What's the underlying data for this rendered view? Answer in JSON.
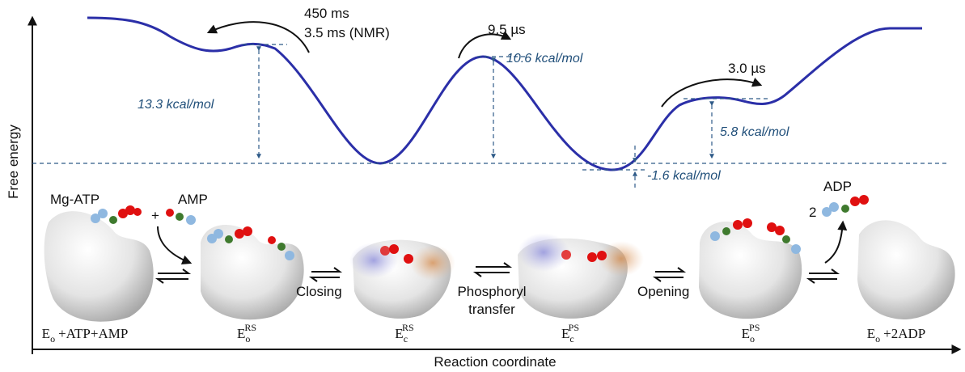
{
  "axes": {
    "y_label": "Free energy",
    "x_label": "Reaction coordinate"
  },
  "kinetics": {
    "t1": "450 ms",
    "t1_nmr": "3.5 ms (NMR)",
    "t2": "9.5 µs",
    "t3": "3.0 µs"
  },
  "energies": {
    "e1": "13.3 kcal/mol",
    "e2": "10.6 kcal/mol",
    "e3": "-1.6 kcal/mol",
    "e4": "5.8 kcal/mol"
  },
  "ligands": {
    "mg_atp": "Mg-ATP",
    "plus": "+",
    "amp": "AMP",
    "adp": "ADP",
    "adp_count": "2"
  },
  "steps": {
    "closing": "Closing",
    "phosphoryl": [
      "Phosphoryl",
      "transfer"
    ],
    "opening": "Opening"
  },
  "states": [
    {
      "base": "E",
      "sub": "o",
      "suffix": "+ATP+AMP"
    },
    {
      "base": "E",
      "sub": "o",
      "sup": "RS"
    },
    {
      "base": "E",
      "sub": "c",
      "sup": "RS"
    },
    {
      "base": "E",
      "sub": "c",
      "sup": "PS"
    },
    {
      "base": "E",
      "sub": "o",
      "sup": "PS"
    },
    {
      "base": "E",
      "sub": "o",
      "suffix": "+2ADP"
    }
  ]
}
